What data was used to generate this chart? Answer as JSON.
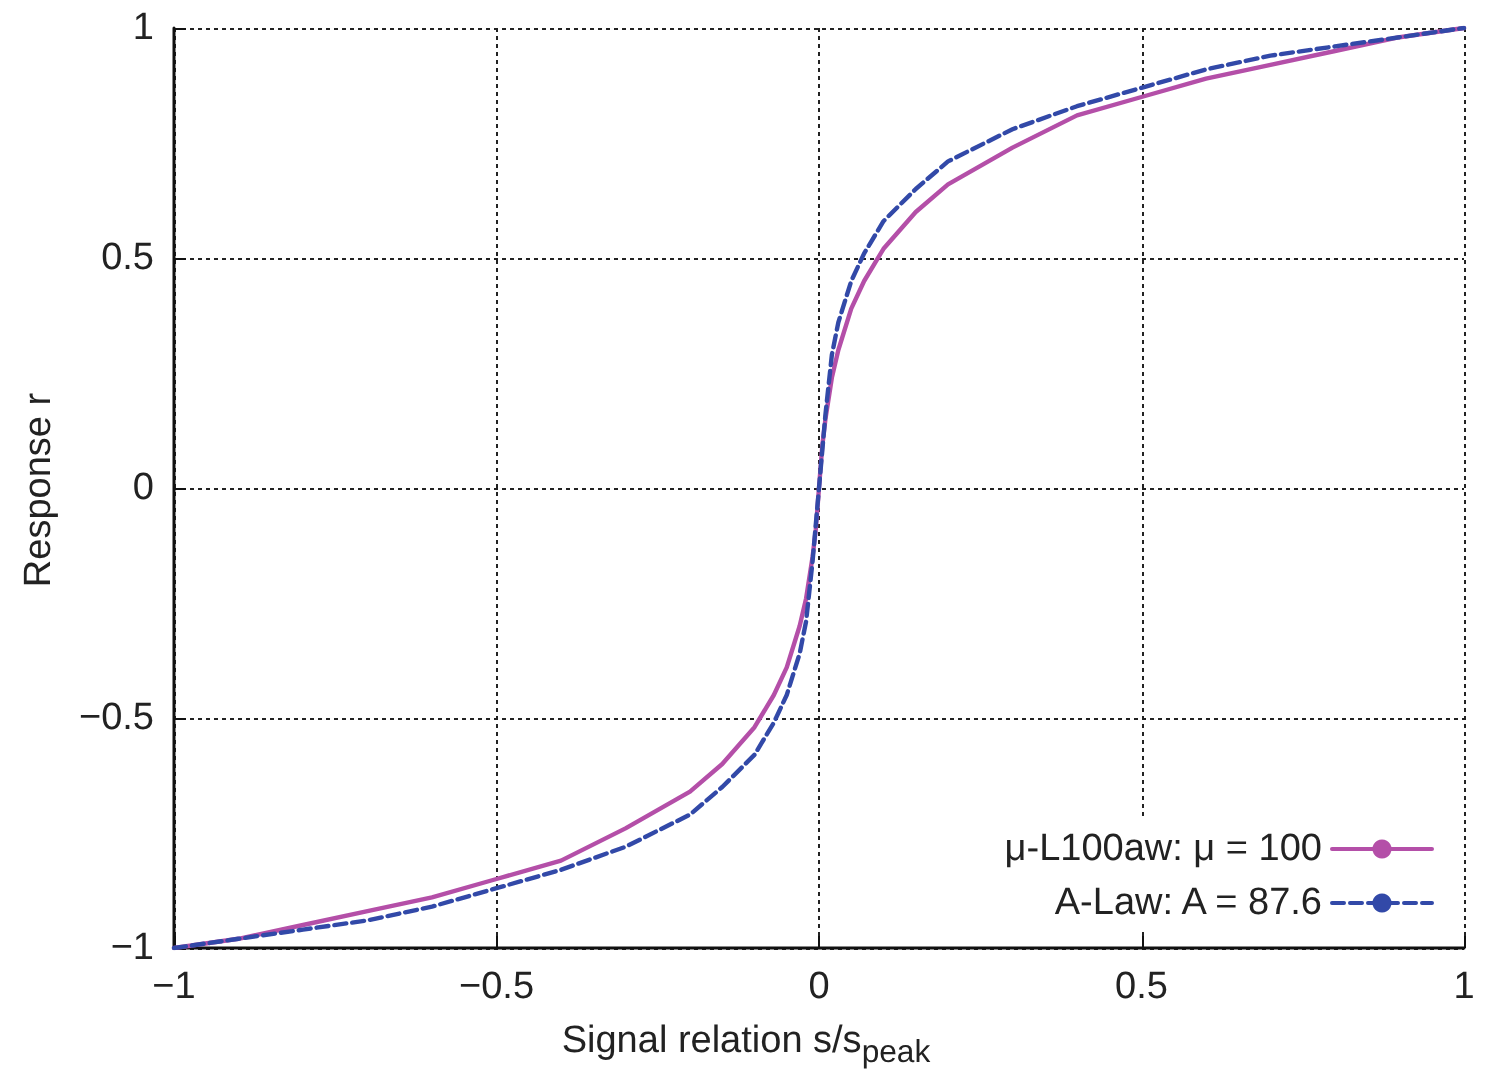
{
  "chart_data": {
    "type": "line",
    "xlabel": "Signal relation s/s$_{peak}$",
    "ylabel": "Response r",
    "x": [
      -1,
      -0.9,
      -0.8,
      -0.7,
      -0.6,
      -0.5,
      -0.4,
      -0.3,
      -0.2,
      -0.15,
      -0.1,
      -0.07,
      -0.05,
      -0.03,
      -0.02,
      -0.01,
      -0.005,
      0,
      0.005,
      0.01,
      0.02,
      0.03,
      0.05,
      0.07,
      0.1,
      0.15,
      0.2,
      0.3,
      0.4,
      0.5,
      0.6,
      0.7,
      0.8,
      0.9,
      1
    ],
    "series": [
      {
        "name": "μ-L100aw: μ = 100",
        "color": "#b44fa8",
        "line_style": "solid",
        "values": [
          -1,
          -0.98,
          -0.95,
          -0.92,
          -0.89,
          -0.85,
          -0.81,
          -0.74,
          -0.66,
          -0.6,
          -0.52,
          -0.45,
          -0.39,
          -0.3,
          -0.24,
          -0.15,
          -0.09,
          0,
          0.09,
          0.15,
          0.24,
          0.3,
          0.39,
          0.45,
          0.52,
          0.6,
          0.66,
          0.74,
          0.81,
          0.85,
          0.89,
          0.92,
          0.95,
          0.98,
          1
        ]
      },
      {
        "name": "A-Law: A = 87.6",
        "color": "#3249a8",
        "line_style": "dashed",
        "values": [
          -1,
          -0.98,
          -0.96,
          -0.94,
          -0.91,
          -0.87,
          -0.83,
          -0.78,
          -0.71,
          -0.65,
          -0.58,
          -0.51,
          -0.45,
          -0.36,
          -0.29,
          -0.16,
          -0.08,
          0,
          0.08,
          0.16,
          0.29,
          0.36,
          0.45,
          0.51,
          0.58,
          0.65,
          0.71,
          0.78,
          0.83,
          0.87,
          0.91,
          0.94,
          0.96,
          0.98,
          1
        ]
      }
    ],
    "xlim": [
      -1,
      1
    ],
    "xticks": [
      -1,
      -0.5,
      0,
      0.5,
      1
    ],
    "ylim": [
      -1,
      1
    ],
    "yticks": [
      -1,
      -0.5,
      0,
      0.5,
      1
    ],
    "grid": true,
    "legend": "bottom right",
    "marker": "none"
  }
}
